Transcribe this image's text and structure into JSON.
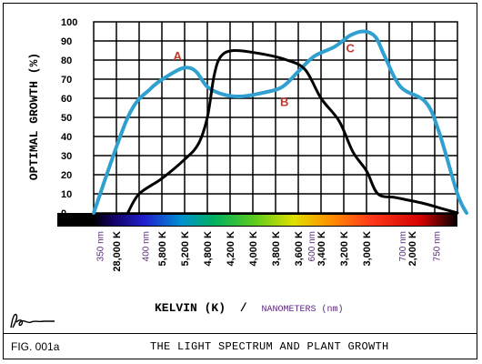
{
  "figure_label": "FIG. 001a",
  "figure_title": "THE LIGHT SPECTRUM AND PLANT GROWTH",
  "chart_data": {
    "type": "line",
    "ylabel": "OPTIMAL GROWTH (%)",
    "xlabel_kelvin": "KELVIN (K)",
    "xlabel_separator": "/",
    "xlabel_nm": "NANOMETERS (nm)",
    "ylim": [
      0,
      100
    ],
    "y_ticks": [
      "100",
      "90",
      "80",
      "70",
      "60",
      "50",
      "40",
      "30",
      "20",
      "10",
      "0"
    ],
    "x_kelvin_ticks": [
      "28,000 K",
      "5,800 K",
      "5,200 K",
      "4,800 K",
      "4,200 K",
      "4,000 K",
      "3,800 K",
      "3,600 K",
      "3,400 K",
      "3,200 K",
      "3,000 K",
      "2,000 K"
    ],
    "x_nm_ticks": [
      "350 nm",
      "400 nm",
      "600 nm",
      "700 nm",
      "750 nm"
    ],
    "grid": true,
    "spectrum_bar": true,
    "series": [
      {
        "name": "A",
        "color": "#30a0d0",
        "points": [
          [
            0,
            0
          ],
          [
            1.5,
            50
          ],
          [
            2.5,
            65
          ],
          [
            3.3,
            72
          ],
          [
            4.0,
            76
          ],
          [
            4.5,
            74
          ],
          [
            5.0,
            66
          ],
          [
            5.7,
            62
          ],
          [
            6.5,
            61
          ],
          [
            7.5,
            63
          ],
          [
            8.3,
            66
          ],
          [
            9.0,
            74
          ],
          [
            9.7,
            82
          ],
          [
            10.6,
            87
          ],
          [
            11.3,
            93
          ],
          [
            11.9,
            95
          ],
          [
            12.4,
            92
          ],
          [
            12.8,
            82
          ],
          [
            13.5,
            66
          ],
          [
            14.6,
            58
          ],
          [
            15.2,
            42
          ],
          [
            16.0,
            10
          ],
          [
            16.4,
            0
          ]
        ]
      },
      {
        "name": "C",
        "color": "#000000",
        "points": [
          [
            1.5,
            0
          ],
          [
            2.0,
            10
          ],
          [
            3.0,
            18
          ],
          [
            4.0,
            28
          ],
          [
            4.6,
            36
          ],
          [
            5.0,
            50
          ],
          [
            5.3,
            72
          ],
          [
            5.6,
            82
          ],
          [
            6.2,
            85
          ],
          [
            7.5,
            83
          ],
          [
            8.5,
            80
          ],
          [
            9.3,
            75
          ],
          [
            10.0,
            60
          ],
          [
            10.8,
            48
          ],
          [
            11.4,
            32
          ],
          [
            12.0,
            22
          ],
          [
            12.5,
            10
          ],
          [
            13.3,
            8
          ],
          [
            14.5,
            5
          ],
          [
            15.4,
            2
          ],
          [
            16.0,
            0
          ]
        ]
      }
    ],
    "annotations": [
      {
        "text": "A",
        "x": 3.5,
        "y": 80
      },
      {
        "text": "B",
        "x": 8.2,
        "y": 56
      },
      {
        "text": "C",
        "x": 11.1,
        "y": 84
      }
    ]
  },
  "colors": {
    "blue_curve": "#30a0d0",
    "black_curve": "#000000",
    "label_red": "#c0392b",
    "nm_label_purple": "#5b2a7a"
  }
}
